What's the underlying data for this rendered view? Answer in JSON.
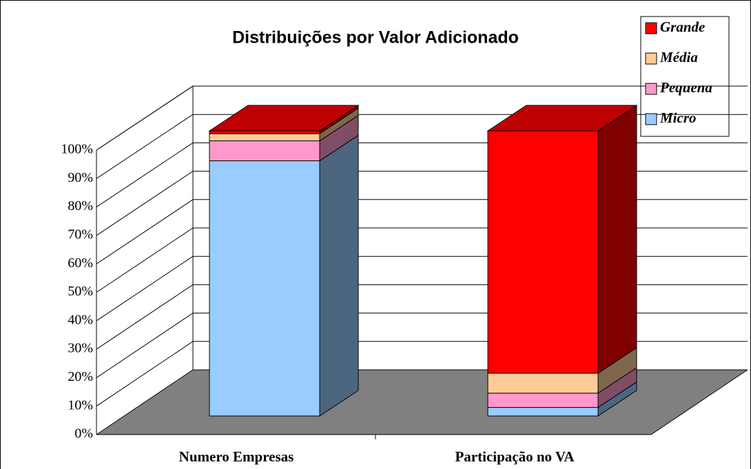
{
  "chart_data": {
    "type": "bar3d_stacked",
    "title": "Distribuições por Valor Adicionado",
    "categories": [
      "Numero Empresas",
      "Participação no VA"
    ],
    "series": [
      {
        "name": "Micro",
        "color": "#99ccff",
        "values": [
          89.5,
          3
        ]
      },
      {
        "name": "Pequena",
        "color": "#ff99cc",
        "values": [
          7,
          5
        ]
      },
      {
        "name": "Média",
        "color": "#ffcc99",
        "values": [
          2.5,
          7
        ]
      },
      {
        "name": "Grande",
        "color": "#ff0000",
        "values": [
          1,
          85
        ]
      }
    ],
    "ylim": [
      0,
      100
    ],
    "yticks": [
      {
        "value": 0,
        "label": "0%"
      },
      {
        "value": 10,
        "label": "10%"
      },
      {
        "value": 20,
        "label": "20%"
      },
      {
        "value": 30,
        "label": "30%"
      },
      {
        "value": 40,
        "label": "40%"
      },
      {
        "value": 50,
        "label": "50%"
      },
      {
        "value": 60,
        "label": "60%"
      },
      {
        "value": 70,
        "label": "70%"
      },
      {
        "value": 80,
        "label": "80%"
      },
      {
        "value": 90,
        "label": "90%"
      },
      {
        "value": 100,
        "label": "100%"
      }
    ],
    "grid": true,
    "legend": "top-right"
  }
}
